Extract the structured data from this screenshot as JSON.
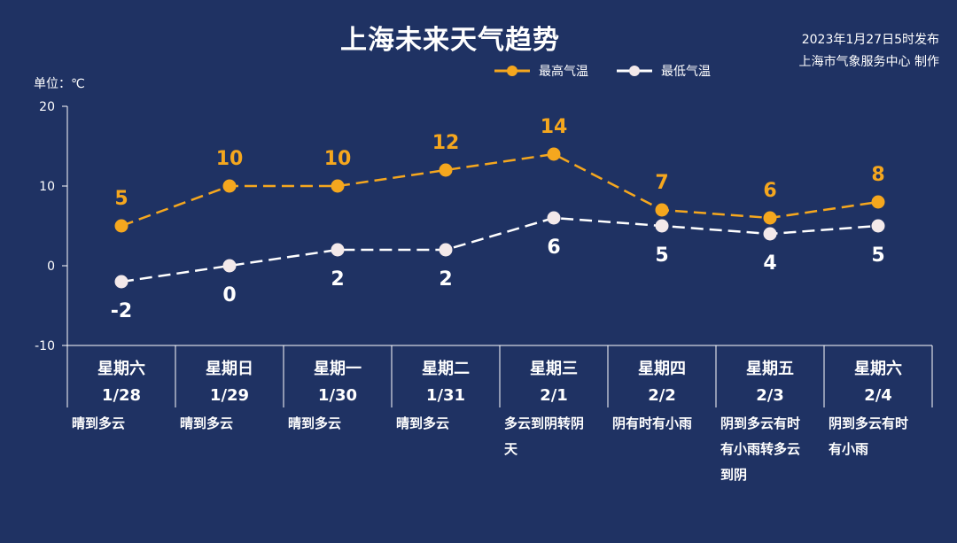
{
  "title": "上海未来天气趋势",
  "publish": {
    "line1": "2023年1月27日5时发布",
    "line2": "上海市气象服务中心 制作"
  },
  "unit_label": "单位：℃",
  "colors": {
    "max": "#f5a71e",
    "min": "#ffffff",
    "background": "#1f3263"
  },
  "chart_data": {
    "type": "line",
    "title": "上海未来天气趋势",
    "ylabel": "单位：℃",
    "ylim": [
      -10,
      20
    ],
    "yticks": [
      20,
      10,
      0,
      -10
    ],
    "grid": false,
    "legend_position": "top-right",
    "categories": [
      "星期六 1/28",
      "星期日 1/29",
      "星期一 1/30",
      "星期二 1/31",
      "星期三 2/1",
      "星期四 2/2",
      "星期五 2/3",
      "星期六 2/4"
    ],
    "days": [
      {
        "weekday": "星期六",
        "date": "1/28",
        "weather": [
          "晴到多云"
        ]
      },
      {
        "weekday": "星期日",
        "date": "1/29",
        "weather": [
          "晴到多云"
        ]
      },
      {
        "weekday": "星期一",
        "date": "1/30",
        "weather": [
          "晴到多云"
        ]
      },
      {
        "weekday": "星期二",
        "date": "1/31",
        "weather": [
          "晴到多云"
        ]
      },
      {
        "weekday": "星期三",
        "date": "2/1",
        "weather": [
          "多云到阴转阴",
          "天"
        ]
      },
      {
        "weekday": "星期四",
        "date": "2/2",
        "weather": [
          "阴有时有小雨"
        ]
      },
      {
        "weekday": "星期五",
        "date": "2/3",
        "weather": [
          "阴到多云有时",
          "有小雨转多云",
          "到阴"
        ]
      },
      {
        "weekday": "星期六",
        "date": "2/4",
        "weather": [
          "阴到多云有时",
          "有小雨"
        ]
      }
    ],
    "series": [
      {
        "name": "最高气温",
        "values": [
          5,
          10,
          10,
          12,
          14,
          7,
          6,
          8
        ]
      },
      {
        "name": "最低气温",
        "values": [
          -2,
          0,
          2,
          2,
          6,
          5,
          4,
          5
        ]
      }
    ]
  }
}
